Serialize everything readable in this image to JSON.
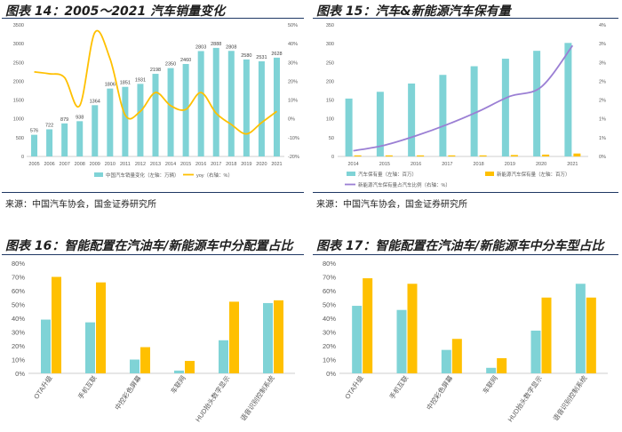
{
  "colors": {
    "teal": "#7fd3d6",
    "gold": "#ffc000",
    "purple": "#9b7fd4",
    "axis": "#bfbfbf",
    "text": "#595959"
  },
  "panel14": {
    "title": "图表 14：2005～2021 汽车销量变化",
    "source": "来源：中国汽车协会，国金证券研究所",
    "chart_data": {
      "type": "bar",
      "categories": [
        "2005",
        "2006",
        "2007",
        "2008",
        "2009",
        "2010",
        "2011",
        "2012",
        "2013",
        "2014",
        "2015",
        "2016",
        "2017",
        "2018",
        "2019",
        "2020",
        "2021"
      ],
      "ylim": [
        0,
        3500
      ],
      "yticks": [
        "0",
        "500",
        "1000",
        "1500",
        "2000",
        "2500",
        "3000",
        "3500"
      ],
      "y2lim": [
        -20,
        50
      ],
      "y2ticks": [
        "-20%",
        "-10%",
        "0%",
        "10%",
        "20%",
        "30%",
        "40%",
        "50%"
      ],
      "series": [
        {
          "name": "中国汽车销量变化（左轴：万辆）",
          "type": "bar",
          "axis": "left",
          "values": [
            576,
            722,
            879,
            938,
            1364,
            1806,
            1851,
            1931,
            2198,
            2350,
            2460,
            2803,
            2888,
            2808,
            2580,
            2531,
            2628
          ],
          "labels": [
            "576",
            "722",
            "879",
            "938",
            "1364",
            "1806",
            "1851",
            "1931",
            "2198",
            "2350",
            "2460",
            "2803",
            "2888",
            "2808",
            "2580",
            "2531",
            "2628"
          ]
        },
        {
          "name": "yoy（右轴：%）",
          "type": "line",
          "axis": "right",
          "values": [
            25,
            24,
            22,
            7,
            46,
            32,
            2,
            4,
            14,
            7,
            5,
            14,
            3,
            -3,
            -8,
            -2,
            4
          ]
        }
      ]
    }
  },
  "panel15": {
    "title": "图表 15：汽车&新能源汽车保有量",
    "chart_data": {
      "type": "bar",
      "categories": [
        "2014",
        "2015",
        "2016",
        "2017",
        "2018",
        "2019",
        "2020",
        "2021"
      ],
      "ylim": [
        0,
        350
      ],
      "yticks": [
        "0",
        "50",
        "100",
        "150",
        "200",
        "250",
        "300",
        "350"
      ],
      "y2lim": [
        0,
        3.5
      ],
      "y2ticks": [
        "0%",
        "1%",
        "1%",
        "2%",
        "2%",
        "3%",
        "3%",
        "4%"
      ],
      "series": [
        {
          "name": "汽车保有量（左轴：百万）",
          "type": "bar",
          "axis": "left",
          "values": [
            154,
            172,
            194,
            217,
            240,
            260,
            281,
            302
          ]
        },
        {
          "name": "新能源汽车保有量（左轴：百万）",
          "type": "bar",
          "axis": "left",
          "values": [
            0.2,
            0.4,
            0.9,
            1.5,
            2.6,
            3.8,
            4.9,
            7.8
          ]
        },
        {
          "name": "新能源汽车保有量占汽车比例（右轴：%）",
          "type": "line",
          "axis": "right",
          "values": [
            0.15,
            0.3,
            0.55,
            0.85,
            1.2,
            1.6,
            1.85,
            2.95
          ]
        }
      ]
    }
  },
  "panel16": {
    "title": "图表 16：智能配置在汽油车/新能源车中分配置占比",
    "source": "来源：中国汽车协会，国金证券研究所",
    "chart_data": {
      "type": "bar",
      "categories": [
        "OTA升级",
        "手机互联",
        "中控彩色屏幕",
        "车联网",
        "HUD抬头数字显示",
        "语音识别控制系统"
      ],
      "ylim": [
        0,
        80
      ],
      "yticks": [
        "0%",
        "10%",
        "20%",
        "30%",
        "40%",
        "50%",
        "60%",
        "70%",
        "80%"
      ],
      "series": [
        {
          "name": "汽油车",
          "values": [
            39,
            37,
            10,
            2,
            24,
            51
          ]
        },
        {
          "name": "新能源车",
          "values": [
            70,
            66,
            19,
            9,
            52,
            53
          ]
        }
      ]
    }
  },
  "panel17": {
    "title": "图表 17：智能配置在汽油车/新能源车中分车型占比",
    "chart_data": {
      "type": "bar",
      "categories": [
        "OTA升级",
        "手机互联",
        "中控彩色屏幕",
        "车联网",
        "HUD抬头数字显示",
        "语音识别控制系统"
      ],
      "ylim": [
        0,
        80
      ],
      "yticks": [
        "0%",
        "10%",
        "20%",
        "30%",
        "40%",
        "50%",
        "60%",
        "70%",
        "80%"
      ],
      "series": [
        {
          "name": "汽油车",
          "values": [
            49,
            46,
            17,
            4,
            31,
            65
          ]
        },
        {
          "name": "新能源车",
          "values": [
            69,
            65,
            25,
            11,
            55,
            55
          ]
        }
      ]
    }
  }
}
